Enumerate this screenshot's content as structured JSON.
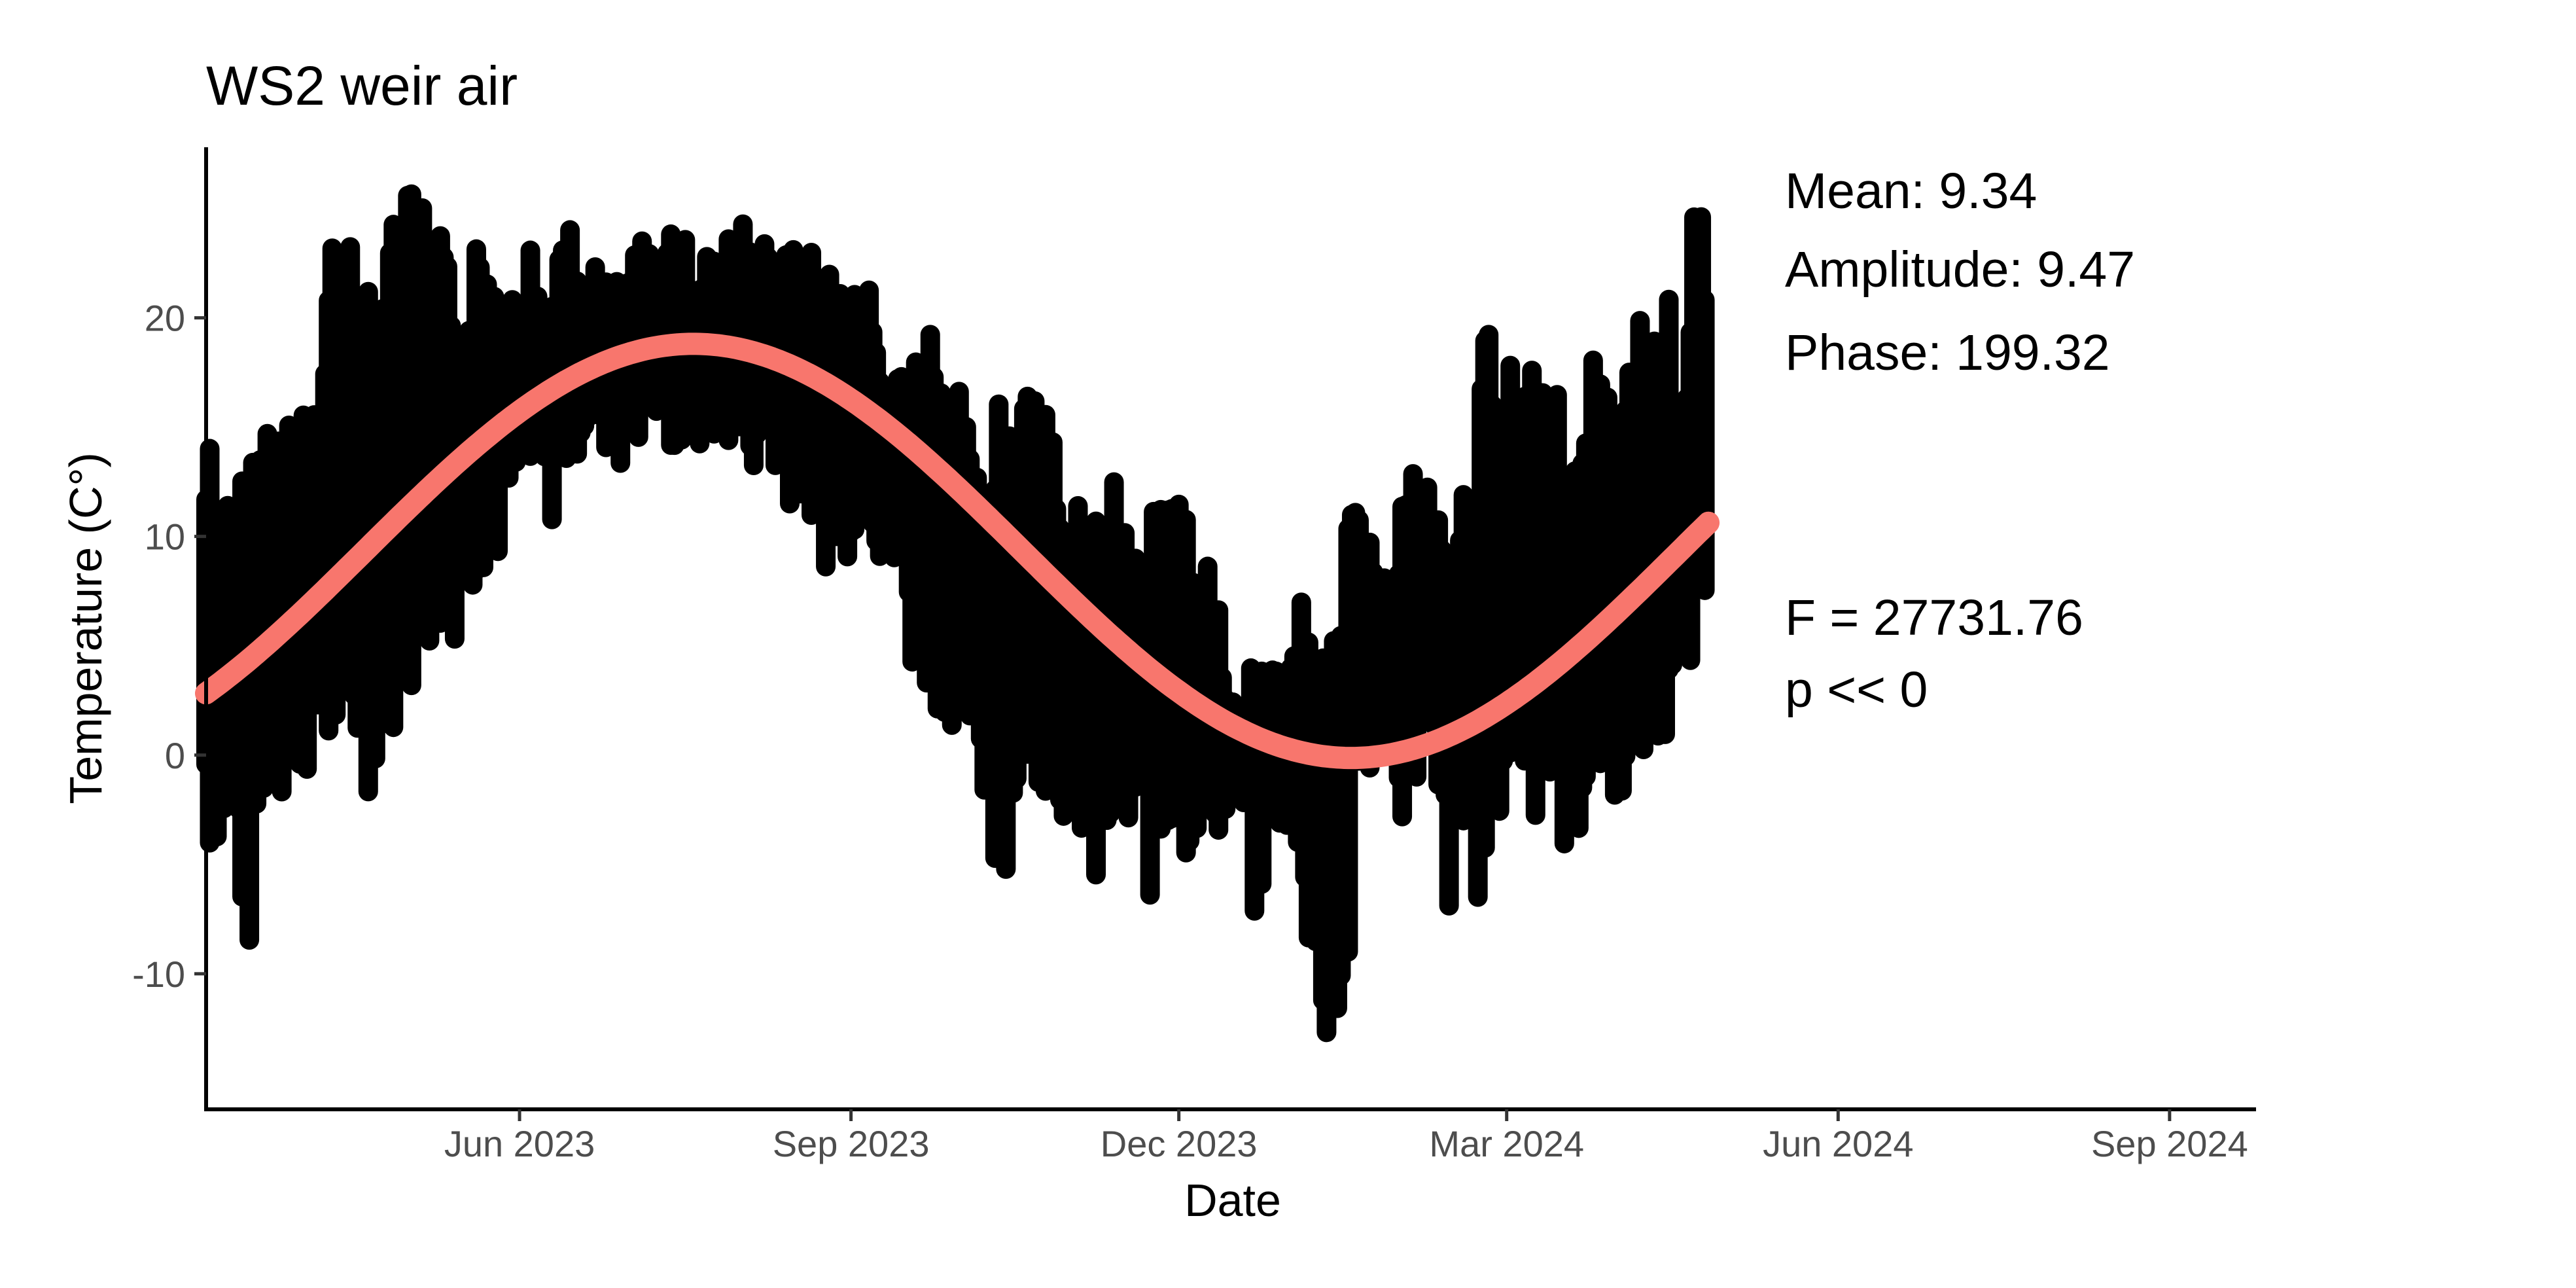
{
  "chart_data": {
    "type": "scatter",
    "title": "WS2 weir air",
    "xlabel": "Date",
    "ylabel": "Temperature (C°)",
    "xlim": [
      "2023-03-06",
      "2024-09-25"
    ],
    "ylim": [
      -16.2,
      27.8
    ],
    "x_ticks": [
      {
        "date": "2023-06-01",
        "label": "Jun 2023"
      },
      {
        "date": "2023-09-01",
        "label": "Sep 2023"
      },
      {
        "date": "2023-12-01",
        "label": "Dec 2023"
      },
      {
        "date": "2024-03-01",
        "label": "Mar 2024"
      },
      {
        "date": "2024-06-01",
        "label": "Jun 2024"
      },
      {
        "date": "2024-09-01",
        "label": "Sep 2024"
      }
    ],
    "y_ticks": [
      -10,
      0,
      10,
      20
    ],
    "grid": false,
    "legend": "none",
    "series": [
      {
        "kind": "observations",
        "color": "#000000",
        "x": [
          "2023-03-06",
          "2023-03-10",
          "2023-03-14",
          "2023-03-18",
          "2023-03-22",
          "2023-03-26",
          "2023-03-30",
          "2023-04-03",
          "2023-04-07",
          "2023-04-11",
          "2023-04-15",
          "2023-04-19",
          "2023-04-23",
          "2023-04-27",
          "2023-05-01",
          "2023-05-05",
          "2023-05-09",
          "2023-05-13",
          "2023-05-17",
          "2023-05-21",
          "2023-05-25",
          "2023-05-29",
          "2023-06-02",
          "2023-06-06",
          "2023-06-10",
          "2023-06-14",
          "2023-06-18",
          "2023-06-22",
          "2023-06-26",
          "2023-06-30",
          "2023-07-04",
          "2023-07-08",
          "2023-07-12",
          "2023-07-16",
          "2023-07-20",
          "2023-07-24",
          "2023-07-28",
          "2023-08-01",
          "2023-08-05",
          "2023-08-09",
          "2023-08-13",
          "2023-08-17",
          "2023-08-21",
          "2023-08-25",
          "2023-08-29",
          "2023-09-02",
          "2023-09-06",
          "2023-09-10",
          "2023-09-14",
          "2023-09-18",
          "2023-09-22",
          "2023-09-26",
          "2023-09-30",
          "2023-10-04",
          "2023-10-08",
          "2023-10-12",
          "2023-10-16",
          "2023-10-20",
          "2023-10-24",
          "2023-10-28",
          "2023-11-01",
          "2023-11-05",
          "2023-11-09",
          "2023-11-13",
          "2023-11-17",
          "2023-11-21",
          "2023-11-25",
          "2023-11-29",
          "2023-12-03",
          "2023-12-07",
          "2023-12-11",
          "2023-12-15",
          "2023-12-19",
          "2023-12-23",
          "2023-12-27",
          "2023-12-31",
          "2024-01-04",
          "2024-01-08",
          "2024-01-12",
          "2024-01-16",
          "2024-01-20",
          "2024-01-24",
          "2024-01-28",
          "2024-02-01",
          "2024-02-05",
          "2024-02-09",
          "2024-02-13",
          "2024-02-17",
          "2024-02-21",
          "2024-02-25",
          "2024-02-29",
          "2024-03-04",
          "2024-03-08",
          "2024-03-12",
          "2024-03-16",
          "2024-03-20",
          "2024-03-24",
          "2024-03-28",
          "2024-04-01",
          "2024-04-05",
          "2024-04-09",
          "2024-04-13",
          "2024-04-17",
          "2024-04-21",
          "2024-04-25"
        ],
        "ymin": [
          -5.5,
          -4,
          -6.5,
          -9.8,
          -3,
          -2.5,
          -2,
          -1,
          -2.3,
          -1.5,
          -0.5,
          -2,
          -1,
          1,
          1.5,
          4.8,
          4.5,
          5,
          6,
          8.5,
          8,
          10,
          11,
          11.5,
          10.5,
          12.5,
          14,
          14.5,
          13.5,
          13,
          14,
          15,
          14,
          13,
          13.5,
          14,
          14.5,
          12.5,
          13,
          13,
          11,
          12,
          10,
          8.5,
          8,
          10,
          10.5,
          8,
          7,
          3.5,
          2.5,
          2,
          1,
          -0.5,
          -3,
          -6.5,
          -4,
          -1,
          -1.5,
          -2.5,
          -3.5,
          -4.5,
          -8.5,
          -4,
          -5.5,
          -6,
          -7.5,
          -4,
          -5,
          -3.5,
          -4,
          -3,
          -3.5,
          -9,
          -2,
          -5,
          -4.5,
          -14,
          -13.5,
          -14,
          -3,
          -1,
          -0.5,
          -3,
          -2,
          -4,
          -8,
          -7,
          -7.5,
          -5,
          -3,
          -2,
          -3,
          -3,
          -4.5,
          -5,
          -2,
          -3,
          -2.5,
          0,
          -1,
          -1.5,
          3,
          2,
          7.5
        ],
        "ymax": [
          17.5,
          13,
          11,
          15,
          16.5,
          17.5,
          17,
          16,
          21,
          26,
          23.5,
          25.5,
          26,
          26,
          26,
          25.5,
          24,
          23,
          21,
          24.5,
          24,
          23,
          24,
          23,
          22.5,
          24.5,
          23,
          23,
          22,
          21.5,
          23.5,
          24,
          25,
          24.5,
          24,
          24.5,
          24,
          25,
          24,
          23.5,
          23.5,
          23,
          23,
          22.5,
          22,
          22.5,
          22,
          18,
          18.5,
          19.5,
          20,
          19,
          17.5,
          16.5,
          15.5,
          17,
          17,
          16.5,
          16,
          15,
          11.5,
          11.5,
          12.5,
          12.5,
          11.5,
          11,
          12.5,
          12.5,
          12,
          11,
          8,
          5,
          4,
          4,
          4.5,
          3.5,
          7,
          8,
          3,
          12,
          11.5,
          10.5,
          13,
          14,
          14,
          13,
          11.5,
          12,
          18,
          19.5,
          18,
          18.5,
          19,
          18,
          17.5,
          15,
          18,
          18.5,
          17,
          19,
          22,
          20.5,
          21.5,
          24.5,
          25.5
        ]
      },
      {
        "kind": "fitted",
        "color": "#F8766D",
        "model": "sinusoid",
        "start": "2023-03-06",
        "end": "2024-04-26",
        "mean": 9.34,
        "amplitude": 9.47,
        "phase": 199.32
      }
    ],
    "annotations": {
      "mean": "Mean: 9.34",
      "amplitude": "Amplitude: 9.47",
      "phase": "Phase: 199.32",
      "f_stat": "F =  27731.76",
      "p_value": "p <<  0"
    }
  }
}
